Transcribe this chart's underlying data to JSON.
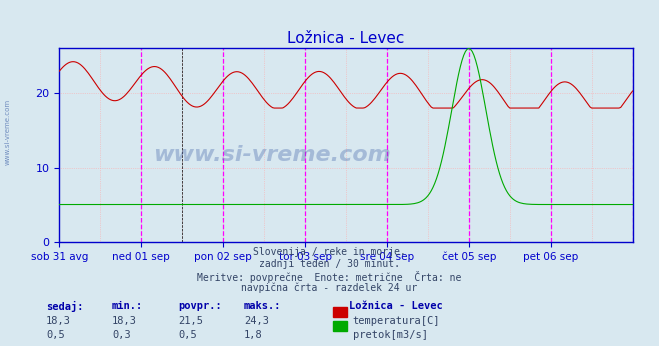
{
  "title": "Ložnica - Levec",
  "title_color": "#0000cc",
  "background_color": "#d8e8f0",
  "plot_bg_color": "#d8e8f0",
  "x_labels": [
    "sob 31 avg",
    "ned 01 sep",
    "pon 02 sep",
    "tor 03 sep",
    "sre 04 sep",
    "čet 05 sep",
    "pet 06 sep"
  ],
  "yticks": [
    0,
    10,
    20
  ],
  "ylim": [
    0,
    26
  ],
  "temp_color": "#cc0000",
  "flow_color": "#00aa00",
  "grid_color": "#ffaaaa",
  "vline_color": "#ff00ff",
  "vline_day_color": "#000000",
  "axis_color": "#0000cc",
  "watermark": "www.si-vreme.com",
  "subtitle_lines": [
    "Slovenija / reke in morje.",
    "zadnji teden / 30 minut.",
    "Meritve: povprečne  Enote: metrične  Črta: ne",
    "navpična črta - razdelek 24 ur"
  ],
  "legend_title": "Ložnica - Levec",
  "legend_items": [
    {
      "label": "temperatura[C]",
      "color": "#cc0000"
    },
    {
      "label": "pretok[m3/s]",
      "color": "#00aa00"
    }
  ],
  "table_headers": [
    "sedaj:",
    "min.:",
    "povpr.:",
    "maks.:"
  ],
  "table_rows": [
    [
      "18,3",
      "18,3",
      "21,5",
      "24,3"
    ],
    [
      "0,5",
      "0,3",
      "0,5",
      "1,8"
    ]
  ],
  "n_points": 337,
  "days": 7,
  "temp_base": 21.5,
  "temp_amplitude": 2.5,
  "flow_base": 0.35,
  "flow_max": 1.8
}
